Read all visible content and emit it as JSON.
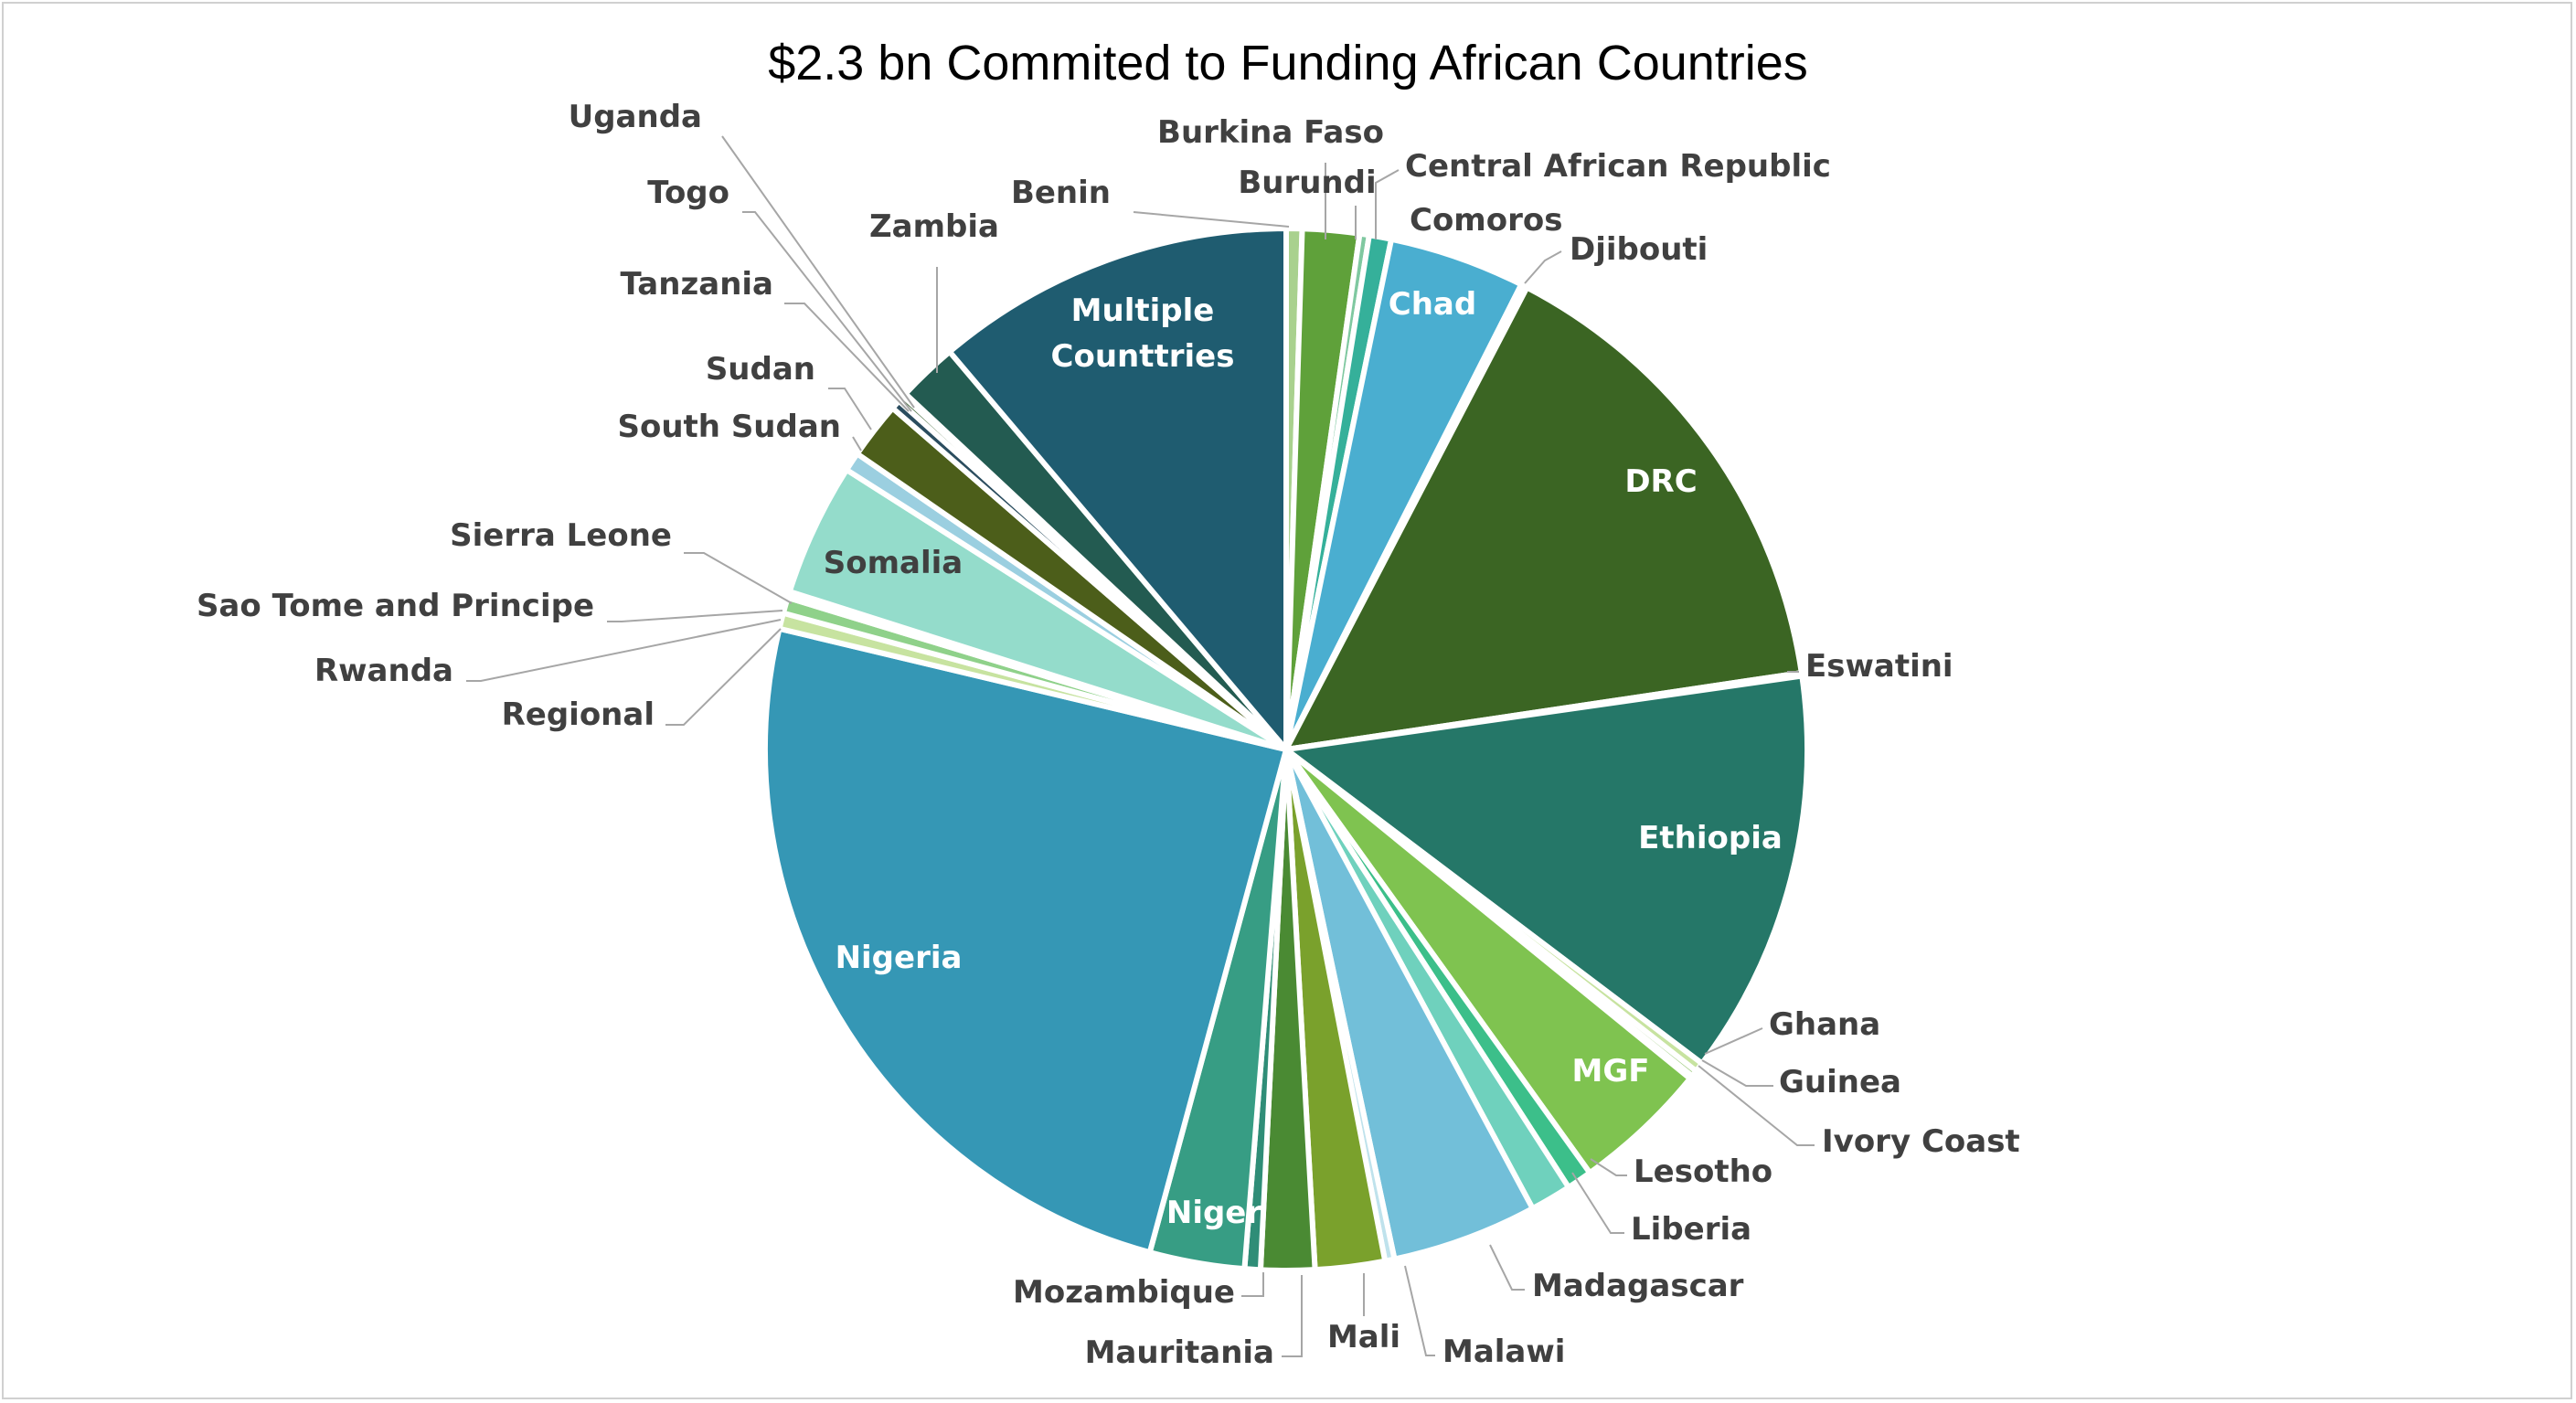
{
  "chart_data": {
    "type": "pie",
    "title": "$2.3 bn Commited to Funding African Countries",
    "slices": [
      {
        "label": "Benin",
        "value": 0.5,
        "color": "#a9d18e"
      },
      {
        "label": "Burkina Faso",
        "value": 1.8,
        "color": "#5fa13a"
      },
      {
        "label": "Burundi",
        "value": 0.3,
        "color": "#7fc8a0"
      },
      {
        "label": "Central African Republic",
        "value": 0.7,
        "color": "#35b09a"
      },
      {
        "label": "Chad",
        "value": 4.3,
        "color": "#4aaed0"
      },
      {
        "label": "Comoros",
        "value": 0.1,
        "color": "#88ccd8"
      },
      {
        "label": "Djibouti",
        "value": 0.1,
        "color": "#9dd4a8"
      },
      {
        "label": "DRC",
        "value": 15.3,
        "color": "#3b6523"
      },
      {
        "label": "Eswatini",
        "value": 0.1,
        "color": "#9dd4a8"
      },
      {
        "label": "Ethiopia",
        "value": 12.8,
        "color": "#257768"
      },
      {
        "label": "Ghana",
        "value": 0.3,
        "color": "#c7e3a0"
      },
      {
        "label": "Guinea",
        "value": 0.2,
        "color": "#a9d18e"
      },
      {
        "label": "Ivory Coast",
        "value": 0.1,
        "color": "#70ad47"
      },
      {
        "label": "MGF",
        "value": 4.3,
        "color": "#7fc350"
      },
      {
        "label": "Lesotho",
        "value": 0.8,
        "color": "#3cbf8a"
      },
      {
        "label": "Liberia",
        "value": 1.3,
        "color": "#6fd1bd"
      },
      {
        "label": "Madagascar",
        "value": 4.6,
        "color": "#72bfd9"
      },
      {
        "label": "Malawi",
        "value": 0.3,
        "color": "#bfe2ec"
      },
      {
        "label": "Mali",
        "value": 2.2,
        "color": "#7aa12c"
      },
      {
        "label": "Mauritania",
        "value": 1.7,
        "color": "#4a8a33"
      },
      {
        "label": "Mozambique",
        "value": 0.5,
        "color": "#2f8d77"
      },
      {
        "label": "Niger",
        "value": 3.0,
        "color": "#379d84"
      },
      {
        "label": "Nigeria",
        "value": 25.0,
        "color": "#3597b5"
      },
      {
        "label": "Regional",
        "value": 0.5,
        "color": "#c7e3a0"
      },
      {
        "label": "Rwanda",
        "value": 0.5,
        "color": "#8fd18a"
      },
      {
        "label": "Sao Tome and Principe",
        "value": 0.1,
        "color": "#d4ecd0"
      },
      {
        "label": "Sierra Leone",
        "value": 0.1,
        "color": "#c7e3a0"
      },
      {
        "label": "Somalia",
        "value": 4.2,
        "color": "#94dccb"
      },
      {
        "label": "South Sudan",
        "value": 0.6,
        "color": "#9bcfe0"
      },
      {
        "label": "Sudan",
        "value": 1.8,
        "color": "#4c5e1a"
      },
      {
        "label": "Tanzania",
        "value": 0.3,
        "color": "#2b4d5f"
      },
      {
        "label": "Togo",
        "value": 0.2,
        "color": "#345e2a"
      },
      {
        "label": "Uganda",
        "value": 0.1,
        "color": "#2e5a4e"
      },
      {
        "label": "Zambia",
        "value": 1.9,
        "color": "#235b51"
      },
      {
        "label": "Multiple Counttries",
        "value": 11.4,
        "color": "#1f5c70"
      }
    ],
    "legend": "none",
    "data_labels": "category names"
  }
}
